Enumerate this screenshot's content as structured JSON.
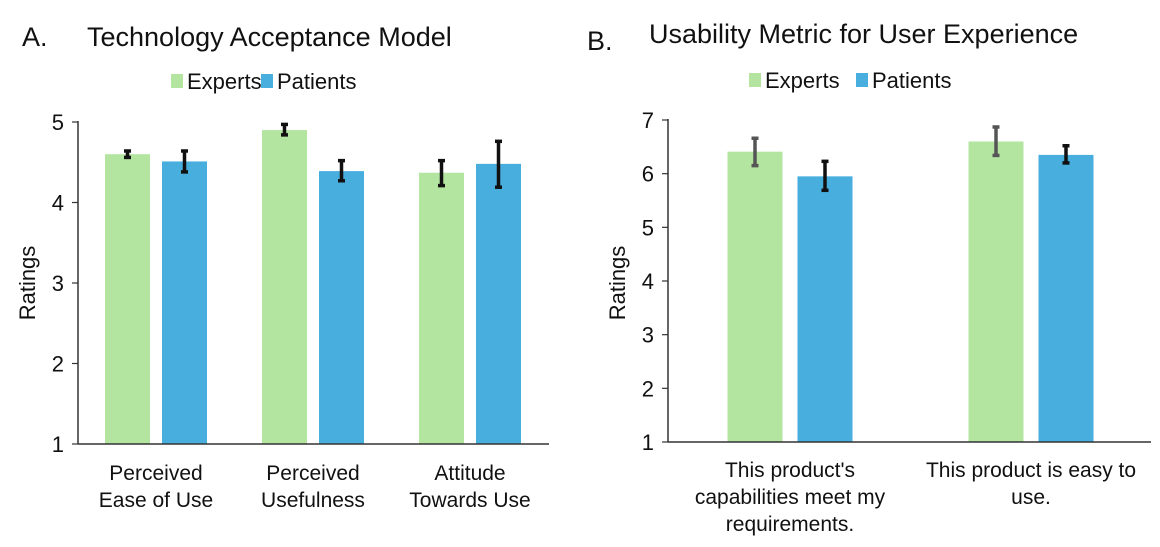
{
  "chart_data": [
    {
      "type": "bar",
      "panel": "A.",
      "title": "Technology Acceptance Model",
      "xlabel": "",
      "ylabel": "Ratings",
      "ylim": [
        1,
        5
      ],
      "yticks": [
        1,
        2,
        3,
        4,
        5
      ],
      "grid": false,
      "legend": {
        "position": "top-center",
        "entries": [
          "Experts",
          "Patients"
        ]
      },
      "categories": [
        [
          "Perceived",
          "Ease of Use"
        ],
        [
          "Perceived",
          "Usefulness"
        ],
        [
          "Attitude",
          "Towards Use"
        ]
      ],
      "series": [
        {
          "name": "Experts",
          "color": "#b3e5a1",
          "errorbar_color": "#111111",
          "values": [
            4.6,
            4.9,
            4.37
          ],
          "error_low": [
            4.56,
            4.84,
            4.21
          ],
          "error_high": [
            4.64,
            4.97,
            4.52
          ]
        },
        {
          "name": "Patients",
          "color": "#47aede",
          "errorbar_color": "#111111",
          "values": [
            4.51,
            4.39,
            4.48
          ],
          "error_low": [
            4.38,
            4.27,
            4.19
          ],
          "error_high": [
            4.64,
            4.52,
            4.76
          ]
        }
      ]
    },
    {
      "type": "bar",
      "panel": "B.",
      "title": "Usability Metric for User Experience",
      "xlabel": "",
      "ylabel": "Ratings",
      "ylim": [
        1,
        7
      ],
      "yticks": [
        1,
        2,
        3,
        4,
        5,
        6,
        7
      ],
      "grid": false,
      "legend": {
        "position": "top-center",
        "entries": [
          "Experts",
          "Patients"
        ]
      },
      "categories": [
        [
          "This product's",
          "capabilities meet my",
          "requirements."
        ],
        [
          "This product is easy to",
          "use."
        ]
      ],
      "series": [
        {
          "name": "Experts",
          "color": "#b3e5a1",
          "errorbar_color": "#555555",
          "values": [
            6.41,
            6.6
          ],
          "error_low": [
            6.15,
            6.34
          ],
          "error_high": [
            6.66,
            6.87
          ]
        },
        {
          "name": "Patients",
          "color": "#47aede",
          "errorbar_color": "#111111",
          "values": [
            5.95,
            6.35
          ],
          "error_low": [
            5.69,
            6.2
          ],
          "error_high": [
            6.23,
            6.52
          ]
        }
      ]
    }
  ]
}
